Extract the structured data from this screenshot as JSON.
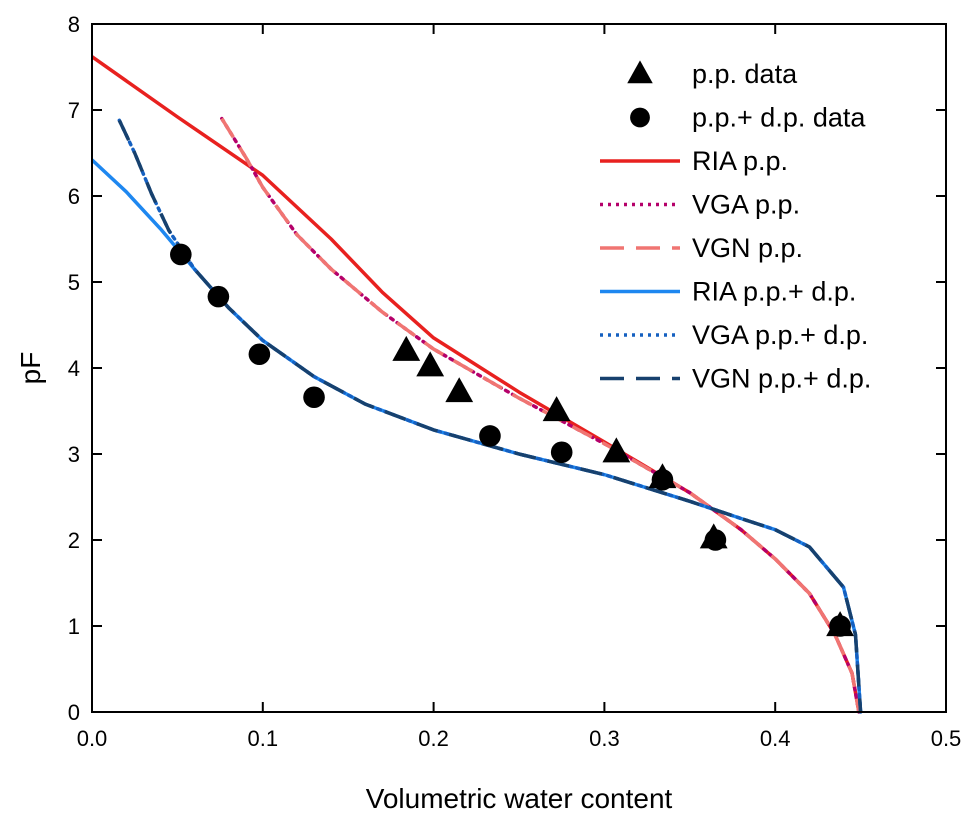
{
  "chart_data": {
    "type": "line",
    "xlabel": "Volumetric water content",
    "ylabel": "pF",
    "xlim": [
      0,
      0.5
    ],
    "ylim": [
      0,
      8
    ],
    "xticks": [
      0.0,
      0.1,
      0.2,
      0.3,
      0.4,
      0.5
    ],
    "xtick_labels": [
      "0.0",
      "0.1",
      "0.2",
      "0.3",
      "0.4",
      "0.5"
    ],
    "yticks": [
      0,
      1,
      2,
      3,
      4,
      5,
      6,
      7,
      8
    ],
    "ytick_labels": [
      "0",
      "1",
      "2",
      "3",
      "4",
      "5",
      "6",
      "7",
      "8"
    ],
    "grid": false,
    "legend_position": "top-right",
    "series": [
      {
        "name": "p.p. data",
        "kind": "scatter",
        "marker": "triangle",
        "color": "#000000",
        "points": [
          [
            0.184,
            4.2
          ],
          [
            0.198,
            4.02
          ],
          [
            0.215,
            3.72
          ],
          [
            0.272,
            3.5
          ],
          [
            0.307,
            3.02
          ],
          [
            0.334,
            2.72
          ],
          [
            0.364,
            2.02
          ],
          [
            0.438,
            1.0
          ]
        ]
      },
      {
        "name": "p.p.+ d.p. data",
        "kind": "scatter",
        "marker": "circle",
        "color": "#000000",
        "points": [
          [
            0.052,
            5.32
          ],
          [
            0.074,
            4.83
          ],
          [
            0.098,
            4.16
          ],
          [
            0.13,
            3.66
          ],
          [
            0.233,
            3.21
          ],
          [
            0.275,
            3.02
          ],
          [
            0.334,
            2.7
          ],
          [
            0.365,
            2.0
          ],
          [
            0.438,
            1.0
          ]
        ]
      },
      {
        "name": "RIA p.p.",
        "kind": "line",
        "style": "solid",
        "color": "#e8211f",
        "points": [
          [
            0.0,
            7.62
          ],
          [
            0.05,
            6.92
          ],
          [
            0.1,
            6.24
          ],
          [
            0.14,
            5.5
          ],
          [
            0.17,
            4.88
          ],
          [
            0.2,
            4.35
          ],
          [
            0.25,
            3.72
          ],
          [
            0.3,
            3.14
          ],
          [
            0.35,
            2.55
          ],
          [
            0.38,
            2.12
          ],
          [
            0.4,
            1.78
          ],
          [
            0.42,
            1.38
          ],
          [
            0.435,
            0.9
          ],
          [
            0.445,
            0.45
          ],
          [
            0.449,
            0.0
          ]
        ]
      },
      {
        "name": "VGA p.p.",
        "kind": "line",
        "style": "dotted",
        "color": "#b5006a",
        "points": [
          [
            0.076,
            6.9
          ],
          [
            0.09,
            6.45
          ],
          [
            0.1,
            6.1
          ],
          [
            0.12,
            5.55
          ],
          [
            0.14,
            5.15
          ],
          [
            0.17,
            4.65
          ],
          [
            0.2,
            4.22
          ],
          [
            0.25,
            3.65
          ],
          [
            0.3,
            3.12
          ],
          [
            0.35,
            2.55
          ],
          [
            0.38,
            2.12
          ],
          [
            0.4,
            1.78
          ],
          [
            0.42,
            1.38
          ],
          [
            0.435,
            0.9
          ],
          [
            0.445,
            0.45
          ],
          [
            0.449,
            0.0
          ]
        ]
      },
      {
        "name": "VGN p.p.",
        "kind": "line",
        "style": "dashed",
        "color": "#f07572",
        "points": [
          [
            0.076,
            6.9
          ],
          [
            0.09,
            6.45
          ],
          [
            0.1,
            6.1
          ],
          [
            0.12,
            5.55
          ],
          [
            0.14,
            5.15
          ],
          [
            0.17,
            4.65
          ],
          [
            0.2,
            4.22
          ],
          [
            0.25,
            3.65
          ],
          [
            0.3,
            3.12
          ],
          [
            0.35,
            2.55
          ],
          [
            0.38,
            2.12
          ],
          [
            0.4,
            1.78
          ],
          [
            0.42,
            1.38
          ],
          [
            0.435,
            0.9
          ],
          [
            0.445,
            0.45
          ],
          [
            0.449,
            0.0
          ]
        ]
      },
      {
        "name": "RIA p.p.+ d.p.",
        "kind": "line",
        "style": "solid",
        "color": "#1e87f0",
        "points": [
          [
            0.0,
            6.42
          ],
          [
            0.02,
            6.05
          ],
          [
            0.04,
            5.62
          ],
          [
            0.06,
            5.15
          ],
          [
            0.08,
            4.7
          ],
          [
            0.1,
            4.32
          ],
          [
            0.13,
            3.9
          ],
          [
            0.16,
            3.58
          ],
          [
            0.2,
            3.28
          ],
          [
            0.25,
            3.0
          ],
          [
            0.3,
            2.76
          ],
          [
            0.35,
            2.45
          ],
          [
            0.38,
            2.25
          ],
          [
            0.4,
            2.12
          ],
          [
            0.42,
            1.92
          ],
          [
            0.44,
            1.45
          ],
          [
            0.447,
            0.9
          ],
          [
            0.45,
            0.0
          ]
        ]
      },
      {
        "name": "VGA p.p.+ d.p.",
        "kind": "line",
        "style": "dotted",
        "color": "#1560c0",
        "points": [
          [
            0.016,
            6.88
          ],
          [
            0.025,
            6.5
          ],
          [
            0.035,
            6.02
          ],
          [
            0.045,
            5.6
          ],
          [
            0.06,
            5.15
          ],
          [
            0.08,
            4.7
          ],
          [
            0.1,
            4.32
          ],
          [
            0.13,
            3.9
          ],
          [
            0.16,
            3.58
          ],
          [
            0.2,
            3.28
          ],
          [
            0.25,
            3.0
          ],
          [
            0.3,
            2.76
          ],
          [
            0.35,
            2.45
          ],
          [
            0.38,
            2.25
          ],
          [
            0.4,
            2.12
          ],
          [
            0.42,
            1.92
          ],
          [
            0.44,
            1.45
          ],
          [
            0.447,
            0.9
          ],
          [
            0.45,
            0.0
          ]
        ]
      },
      {
        "name": "VGN p.p.+ d.p.",
        "kind": "line",
        "style": "dashed",
        "color": "#17416e",
        "points": [
          [
            0.016,
            6.88
          ],
          [
            0.025,
            6.5
          ],
          [
            0.035,
            6.02
          ],
          [
            0.045,
            5.6
          ],
          [
            0.06,
            5.15
          ],
          [
            0.08,
            4.7
          ],
          [
            0.1,
            4.32
          ],
          [
            0.13,
            3.9
          ],
          [
            0.16,
            3.58
          ],
          [
            0.2,
            3.28
          ],
          [
            0.25,
            3.0
          ],
          [
            0.3,
            2.76
          ],
          [
            0.35,
            2.45
          ],
          [
            0.38,
            2.25
          ],
          [
            0.4,
            2.12
          ],
          [
            0.42,
            1.92
          ],
          [
            0.44,
            1.45
          ],
          [
            0.447,
            0.9
          ],
          [
            0.45,
            0.0
          ]
        ]
      }
    ]
  }
}
